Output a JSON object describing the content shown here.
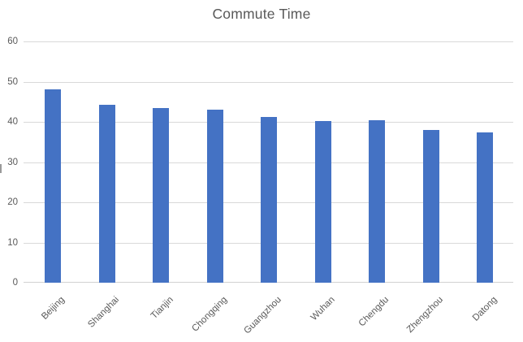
{
  "chart_data": {
    "type": "bar",
    "title": "Commute Time",
    "categories": [
      "Beijing",
      "Shanghai",
      "Tianjin",
      "Chongqing",
      "Guangzhou",
      "Wuhan",
      "Chengdu",
      "Zhengzhou",
      "Datong"
    ],
    "values": [
      48,
      44.2,
      43.5,
      43,
      41.3,
      40.3,
      40.4,
      38,
      37.4
    ],
    "xlabel": "",
    "ylabel": "",
    "ylim": [
      0,
      60
    ],
    "y_ticks": [
      0,
      10,
      20,
      30,
      40,
      50,
      60
    ],
    "grid": "horizontal",
    "legend_position": "none",
    "bar_color": "#4472C4",
    "gridline_color": "#D9D9D9",
    "text_color": "#595959",
    "clipped_y_axis_fragment_visible": true
  }
}
